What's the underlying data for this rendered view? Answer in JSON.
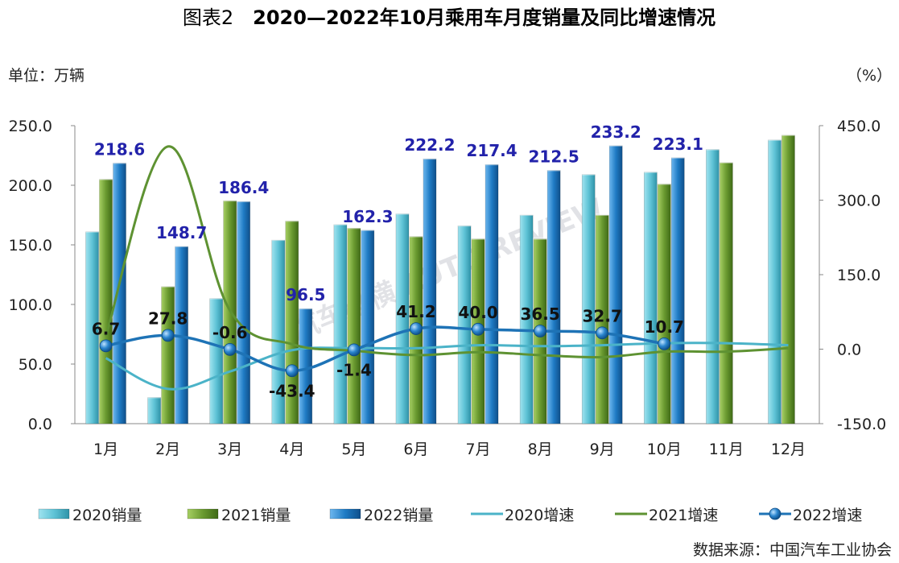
{
  "title": {
    "prefix": "图表2",
    "main": "2020—2022年10月乘用车月度销量及同比增速情况"
  },
  "left_unit": "单位：万辆",
  "right_unit": "（%）",
  "source": "数据来源：中国汽车工业协会",
  "watermark": "汽车纵横 AUTO REVIEW",
  "colors": {
    "bar_2020": "#5fc3d6",
    "bar_2021": "#6a9a30",
    "bar_2022": "#1f7bc4",
    "line_2020": "#4bb3c8",
    "line_2021": "#5e9232",
    "line_2022": "#1e73b6"
  },
  "chart_data": {
    "type": "bar",
    "categories": [
      "1月",
      "2月",
      "3月",
      "4月",
      "5月",
      "6月",
      "7月",
      "8月",
      "9月",
      "10月",
      "11月",
      "12月"
    ],
    "y_left": {
      "min": 0,
      "max": 250,
      "step": 50,
      "ticks": [
        "0.0",
        "50.0",
        "100.0",
        "150.0",
        "200.0",
        "250.0"
      ]
    },
    "y_right": {
      "min": -150,
      "max": 450,
      "step": 150,
      "ticks": [
        "-150.0",
        "0.0",
        "150.0",
        "300.0",
        "450.0"
      ]
    },
    "bar_series": [
      {
        "name": "2020销量",
        "values": [
          161,
          22,
          105,
          154,
          167,
          176,
          166,
          175,
          209,
          211,
          230,
          238
        ]
      },
      {
        "name": "2021销量",
        "values": [
          205,
          115,
          187,
          170,
          164,
          157,
          155,
          155,
          175,
          201,
          219,
          242
        ]
      },
      {
        "name": "2022销量",
        "values": [
          218.6,
          148.7,
          186.4,
          96.5,
          162.3,
          222.2,
          217.4,
          212.5,
          233.2,
          223.1,
          null,
          null
        ]
      }
    ],
    "line_series": [
      {
        "name": "2020增速",
        "values": [
          -18,
          -80,
          -45,
          -2,
          2,
          2,
          8,
          6,
          8,
          12,
          12,
          8
        ]
      },
      {
        "name": "2021增速",
        "values": [
          26,
          408,
          78,
          10,
          -3,
          -12,
          -6,
          -12,
          -16,
          -5,
          -5,
          2
        ]
      },
      {
        "name": "2022增速",
        "values": [
          6.7,
          27.8,
          -0.6,
          -43.4,
          -1.4,
          41.2,
          40.0,
          36.5,
          32.7,
          10.7,
          null,
          null
        ]
      }
    ],
    "bar_labels_2022": [
      "218.6",
      "148.7",
      "186.4",
      "96.5",
      "162.3",
      "222.2",
      "217.4",
      "212.5",
      "233.2",
      "223.1"
    ],
    "growth_labels_2022": [
      "6.7",
      "27.8",
      "-0.6",
      "-43.4",
      "-1.4",
      "41.2",
      "40.0",
      "36.5",
      "32.7",
      "10.7"
    ],
    "legend": [
      "2020销量",
      "2021销量",
      "2022销量",
      "2020增速",
      "2021增速",
      "2022增速"
    ],
    "legend_position": "bottom"
  }
}
